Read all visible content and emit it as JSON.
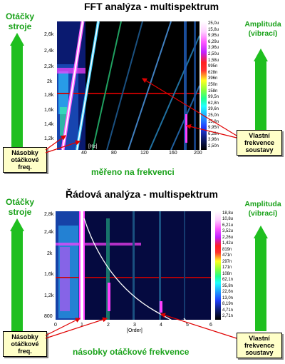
{
  "top": {
    "title": "FFT analýza - multispektrum",
    "left_label": "Otáčky stroje",
    "right_label": "Amplituda (vibrací)",
    "callout_left": "Násobky otáčkové freq.",
    "callout_right": "Vlastní frekvence soustavy",
    "caption": "měřeno na frekvenci",
    "x_unit": "[Hz]",
    "y_ticks": [
      "2,6k",
      "2,4k",
      "2,2k",
      "2k",
      "1,8k",
      "1,6k",
      "1,4k",
      "1,2k"
    ],
    "x_ticks": [
      "40",
      "80",
      "120",
      "160",
      "200"
    ],
    "colorbar": [
      "25,0u",
      "15,8u",
      "9,95u",
      "6,29u",
      "3,96u",
      "2,50u",
      "1,58u",
      "995n",
      "628n",
      "396n",
      "250n",
      "158n",
      "99,5n",
      "62,8n",
      "39,6n",
      "25,0n",
      "15,8n",
      "9,95n",
      "6,28n",
      "3,96n",
      "2,50n"
    ]
  },
  "bottom": {
    "title": "Řádová analýza - multispektrum",
    "left_label": "Otáčky stroje",
    "right_label": "Amplituda (vibrací)",
    "callout_left": "Násobky otáčkové freq.",
    "callout_right": "Vlastní frekvence soustavy",
    "caption": "násobky otáčkové frekvence",
    "x_unit": "[Order]",
    "y_ticks": [
      "2,8k",
      "2,4k",
      "2k",
      "1,6k",
      "1,2k",
      "800"
    ],
    "x_ticks": [
      "0",
      "1",
      "2",
      "3",
      "4",
      "5",
      "6"
    ],
    "colorbar": [
      "18,8u",
      "10,8u",
      "6,21u",
      "3,52u",
      "2,26u",
      "1,42u",
      "819n",
      "471n",
      "297n",
      "171n",
      "108n",
      "62,1n",
      "35,8n",
      "22,6n",
      "13,0n",
      "8,19n",
      "4,71n",
      "2,71n"
    ]
  },
  "colors": {
    "green": "#1fbf1f",
    "callout_bg": "#ffffc8",
    "red_arrow": "#e00000"
  }
}
